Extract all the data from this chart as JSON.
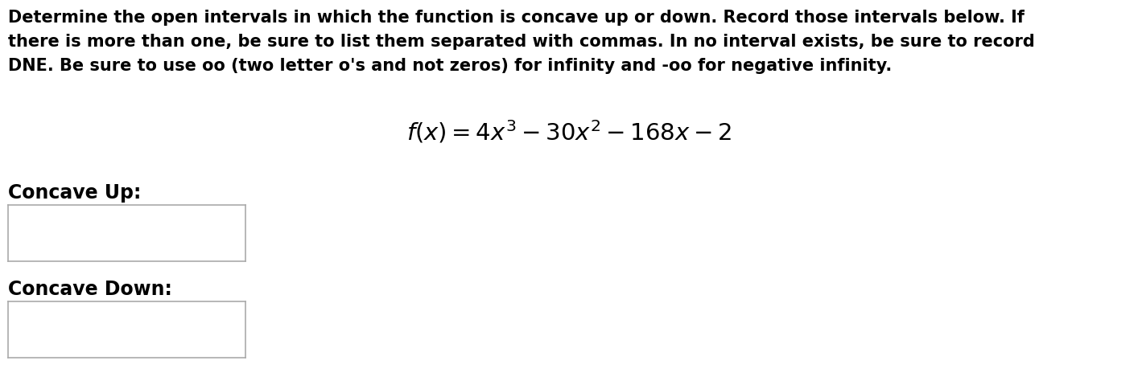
{
  "bg_color": "#ffffff",
  "text_color": "#000000",
  "paragraph_line1": "Determine the open intervals in which the function is concave up or down. Record those intervals below. If",
  "paragraph_line2": "there is more than one, be sure to list them separated with commas. In no interval exists, be sure to record",
  "paragraph_line3": "DNE. Be sure to use oo (two letter o's and not zeros) for infinity and -oo for negative infinity.",
  "formula": "$f(x) = 4x^3 - 30x^2 - 168x - 2$",
  "label_concave_up": "Concave Up:",
  "label_concave_down": "Concave Down:",
  "para_fontsize": 15,
  "formula_fontsize": 21,
  "label_fontsize": 17,
  "edge_color": "#aaaaaa"
}
